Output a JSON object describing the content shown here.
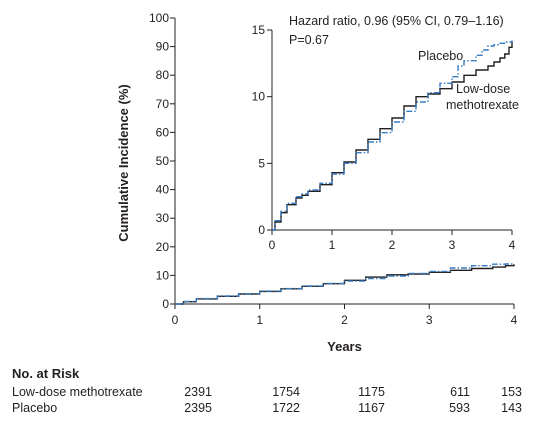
{
  "chart_data": [
    {
      "type": "line",
      "panel": "main",
      "ylabel": "Cumulative Incidence (%)",
      "xlabel": "Years",
      "xlim": [
        0,
        4
      ],
      "ylim": [
        0,
        100
      ],
      "x_ticks": [
        0,
        1,
        2,
        3,
        4
      ],
      "y_ticks": [
        0,
        10,
        20,
        30,
        40,
        50,
        60,
        70,
        80,
        90,
        100
      ],
      "series": [
        {
          "name": "Low-dose methotrexate",
          "color": "#231f20",
          "style": "solid",
          "x": [
            0,
            0.1,
            0.25,
            0.5,
            0.75,
            1.0,
            1.25,
            1.5,
            1.75,
            2.0,
            2.25,
            2.5,
            2.75,
            3.0,
            3.25,
            3.5,
            3.75,
            3.9,
            4.0
          ],
          "y": [
            0,
            0.8,
            1.8,
            2.7,
            3.5,
            4.4,
            5.3,
            6.2,
            7.1,
            8.3,
            9.4,
            10.2,
            10.5,
            11.1,
            11.8,
            12.4,
            12.9,
            13.4,
            13.9
          ]
        },
        {
          "name": "Placebo",
          "color": "#3a7cc2",
          "style": "dash-dot",
          "x": [
            0,
            0.1,
            0.25,
            0.5,
            0.75,
            1.0,
            1.25,
            1.5,
            1.75,
            2.0,
            2.25,
            2.5,
            2.75,
            3.0,
            3.25,
            3.5,
            3.75,
            3.9,
            4.0
          ],
          "y": [
            0,
            0.9,
            1.9,
            2.8,
            3.6,
            4.5,
            5.4,
            6.3,
            7.2,
            8.0,
            8.9,
            9.8,
            10.7,
            11.4,
            12.6,
            13.4,
            13.9,
            14.0,
            14.1
          ]
        }
      ]
    },
    {
      "type": "line",
      "panel": "inset",
      "xlim": [
        0,
        4
      ],
      "ylim": [
        0,
        15
      ],
      "x_ticks": [
        0,
        1,
        2,
        3,
        4
      ],
      "y_ticks": [
        0,
        5,
        10,
        15
      ],
      "annotations": [
        "Hazard ratio, 0.96 (95% CI, 0.79–1.16)",
        "P=0.67"
      ],
      "series_labels": [
        "Placebo",
        "Low-dose",
        "methotrexate"
      ],
      "series": [
        {
          "name": "Low-dose methotrexate",
          "color": "#231f20",
          "style": "solid",
          "x": [
            0,
            0.05,
            0.15,
            0.25,
            0.4,
            0.5,
            0.6,
            0.8,
            1.0,
            1.2,
            1.4,
            1.6,
            1.8,
            2.0,
            2.2,
            2.4,
            2.6,
            2.8,
            3.0,
            3.2,
            3.4,
            3.6,
            3.7,
            3.8,
            3.88,
            3.95,
            4.0
          ],
          "y": [
            0,
            0.6,
            1.3,
            1.9,
            2.4,
            2.6,
            2.9,
            3.4,
            4.3,
            5.1,
            6.0,
            6.8,
            7.6,
            8.4,
            9.3,
            10.0,
            10.2,
            10.6,
            11.1,
            11.6,
            12.0,
            12.3,
            12.6,
            12.9,
            13.2,
            13.7,
            14.2
          ]
        },
        {
          "name": "Placebo",
          "color": "#3a7cc2",
          "style": "dash-dot",
          "x": [
            0,
            0.05,
            0.15,
            0.25,
            0.4,
            0.5,
            0.6,
            0.8,
            1.0,
            1.2,
            1.4,
            1.6,
            1.8,
            2.0,
            2.2,
            2.4,
            2.6,
            2.8,
            3.0,
            3.1,
            3.2,
            3.4,
            3.5,
            3.6,
            3.7,
            3.8,
            3.9,
            4.0
          ],
          "y": [
            0,
            0.7,
            1.4,
            2.0,
            2.5,
            2.7,
            3.0,
            3.5,
            4.2,
            5.0,
            5.8,
            6.6,
            7.3,
            8.1,
            8.9,
            9.6,
            10.3,
            11.0,
            11.5,
            12.3,
            12.7,
            13.1,
            13.5,
            13.8,
            13.9,
            14.0,
            14.1,
            14.2
          ]
        }
      ]
    }
  ],
  "risk_table": {
    "title": "No. at Risk",
    "rows": [
      {
        "label": "Low-dose methotrexate",
        "values": [
          "2391",
          "1754",
          "1175",
          "611",
          "153"
        ]
      },
      {
        "label": "Placebo",
        "values": [
          "2395",
          "1722",
          "1167",
          "593",
          "143"
        ]
      }
    ]
  }
}
